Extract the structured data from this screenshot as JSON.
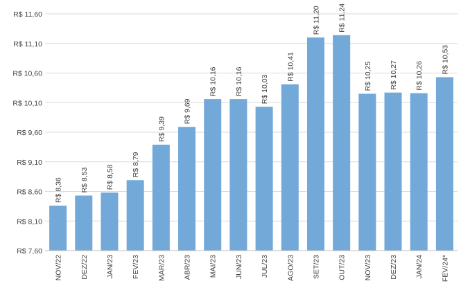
{
  "chart_data": {
    "type": "bar",
    "title": "",
    "xlabel": "",
    "ylabel": "",
    "categories": [
      "NOV/22",
      "DEZ/22",
      "JAN/23",
      "FEV/23",
      "MAR/23",
      "ABR/23",
      "MAI/23",
      "JUN/23",
      "JUL/23",
      "AGO/23",
      "SET/23",
      "OUT/23",
      "NOV/23",
      "DEZ/23",
      "JAN/24",
      "FEV/24*"
    ],
    "values": [
      8.36,
      8.53,
      8.58,
      8.79,
      9.39,
      9.69,
      10.16,
      10.16,
      10.03,
      10.41,
      11.2,
      11.24,
      10.25,
      10.27,
      10.26,
      10.53
    ],
    "data_labels": [
      "R$ 8,36",
      "R$ 8,53",
      "R$ 8,58",
      "R$ 8,79",
      "R$ 9,39",
      "R$ 9,69",
      "R$ 10,16",
      "R$ 10,16",
      "R$ 10,03",
      "R$ 10,41",
      "R$ 11,20",
      "R$ 11,24",
      "R$ 10,25",
      "R$ 10,27",
      "R$ 10,26",
      "R$ 10,53"
    ],
    "yticks": [
      7.6,
      8.1,
      8.6,
      9.1,
      9.6,
      10.1,
      10.6,
      11.1,
      11.6
    ],
    "ytick_labels": [
      "R$ 7,60",
      "R$ 8,10",
      "R$ 8,60",
      "R$ 9,10",
      "R$ 9,60",
      "R$ 10,10",
      "R$ 10,60",
      "R$ 11,10",
      "R$ 11,60"
    ],
    "ylim": [
      7.6,
      11.6
    ],
    "grid": true,
    "legend": "none",
    "colors": {
      "bar": "#73a9d8",
      "grid": "#d9d9d9",
      "axis": "#bfbfbf",
      "text": "#404040"
    }
  }
}
